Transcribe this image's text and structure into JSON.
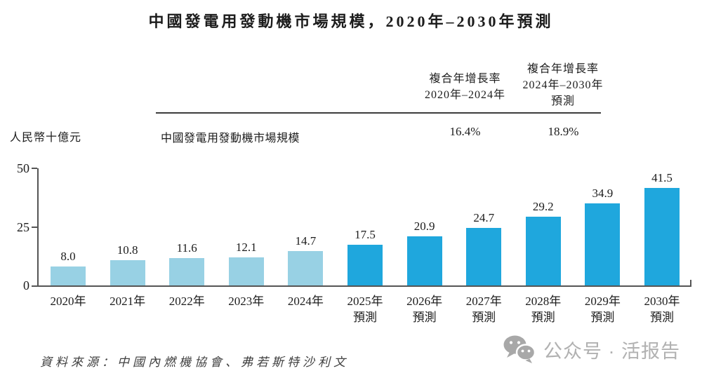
{
  "title": "中國發電用發動機市場規模，2020年–2030年預測",
  "table": {
    "columns": [
      {
        "header_lines": [
          "複合年增長率",
          "2020年–2024年",
          ""
        ]
      },
      {
        "header_lines": [
          "複合年增長率",
          "2024年–2030年",
          "預測"
        ]
      }
    ],
    "row": {
      "label": "中國發電用發動機市場規模",
      "values": [
        "16.4%",
        "18.9%"
      ]
    }
  },
  "chart_data": {
    "type": "bar",
    "title": "中國發電用發動機市場規模，2020年–2030年預測",
    "xlabel": "",
    "ylabel": "人民幣十億元",
    "categories": [
      "2020年",
      "2021年",
      "2022年",
      "2023年",
      "2024年",
      "2025年",
      "2026年",
      "2027年",
      "2028年",
      "2029年",
      "2030年"
    ],
    "values": [
      8.0,
      10.8,
      11.6,
      12.1,
      14.7,
      17.5,
      20.9,
      24.7,
      29.2,
      34.9,
      41.5
    ],
    "forecast_label": "預測",
    "historical_count": 5,
    "ylim": [
      0,
      50
    ],
    "yticks": [
      0,
      25,
      50
    ],
    "grid": false,
    "legend": "none",
    "colors": {
      "historical": "#98D1E4",
      "forecast": "#1FA7DD",
      "axis": "#555555"
    }
  },
  "source": "資料來源：中國內燃機協會、弗若斯特沙利文",
  "watermark": {
    "icon": "wechat-icon",
    "text": "公众号 · 活报告",
    "color": "#b1b1b1"
  }
}
